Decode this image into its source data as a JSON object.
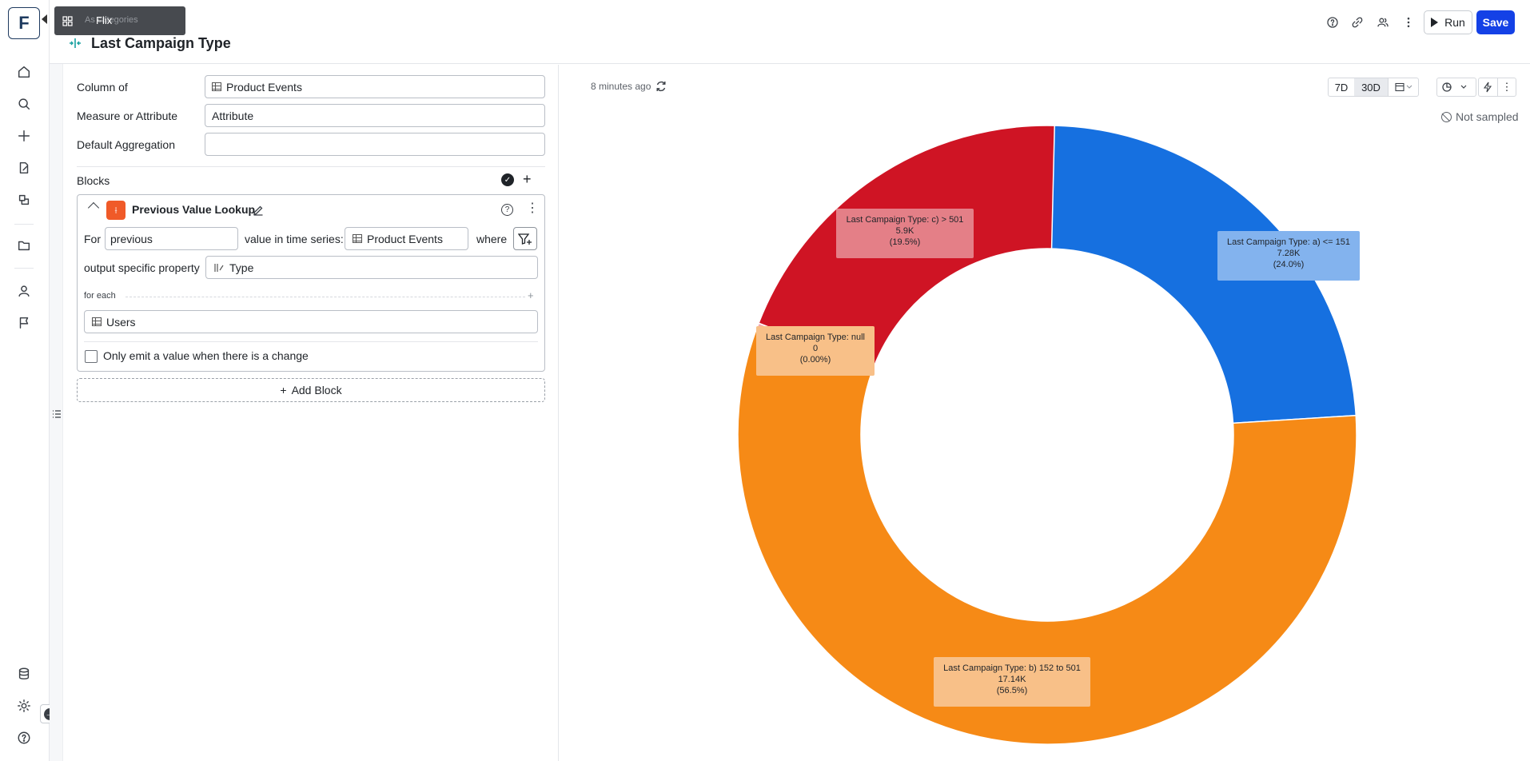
{
  "tooltip": {
    "shadow_text": "As categories",
    "label": "Flix",
    "icon": "grid-icon"
  },
  "logo": "F",
  "header": {
    "title": "Last Campaign Type",
    "run_label": "Run",
    "save_label": "Save"
  },
  "form": {
    "column_of": {
      "label": "Column of",
      "value": "Product Events"
    },
    "measure": {
      "label": "Measure or Attribute",
      "value": "Attribute"
    },
    "aggregation": {
      "label": "Default Aggregation",
      "value": ""
    },
    "blocks_label": "Blocks"
  },
  "block": {
    "title": "Previous Value Lookup",
    "for_label": "For",
    "for_value": "previous",
    "series_label": "value in time series:",
    "series_value": "Product Events",
    "where_label": "where",
    "output_label": "output specific property",
    "output_value": "Type",
    "foreach_label": "for each",
    "foreach_value": "Users",
    "checkbox_label": "Only emit a value when there is a change",
    "checkbox_checked": false
  },
  "add_block_label": "Add Block",
  "chart_area": {
    "updated": "8 minutes ago",
    "range_7d": "7D",
    "range_30d": "30D",
    "active_range": "30D",
    "not_sampled": "Not sampled"
  },
  "chart_data": {
    "type": "pie",
    "variant": "donut",
    "title": "",
    "slices": [
      {
        "label": "Last Campaign Type: a) <= 151",
        "value_text": "7.28K",
        "value": 7280,
        "percent_text": "(24.0%)",
        "percent": 24.0,
        "color": "#1670e0",
        "label_bg": "#83b3ee"
      },
      {
        "label": "Last Campaign Type: b) 152 to 501",
        "value_text": "17.14K",
        "value": 17140,
        "percent_text": "(56.5%)",
        "percent": 56.5,
        "color": "#f68a16",
        "label_bg": "#f8c088"
      },
      {
        "label": "Last Campaign Type: null",
        "value_text": "0",
        "value": 0,
        "percent_text": "(0.00%)",
        "percent": 0.0,
        "color": "#f3a9b0",
        "label_bg": "#f8c088"
      },
      {
        "label": "Last Campaign Type: c) > 501",
        "value_text": "5.9K",
        "value": 5900,
        "percent_text": "(19.5%)",
        "percent": 19.5,
        "color": "#cf1424",
        "label_bg": "#e47f87"
      }
    ]
  }
}
